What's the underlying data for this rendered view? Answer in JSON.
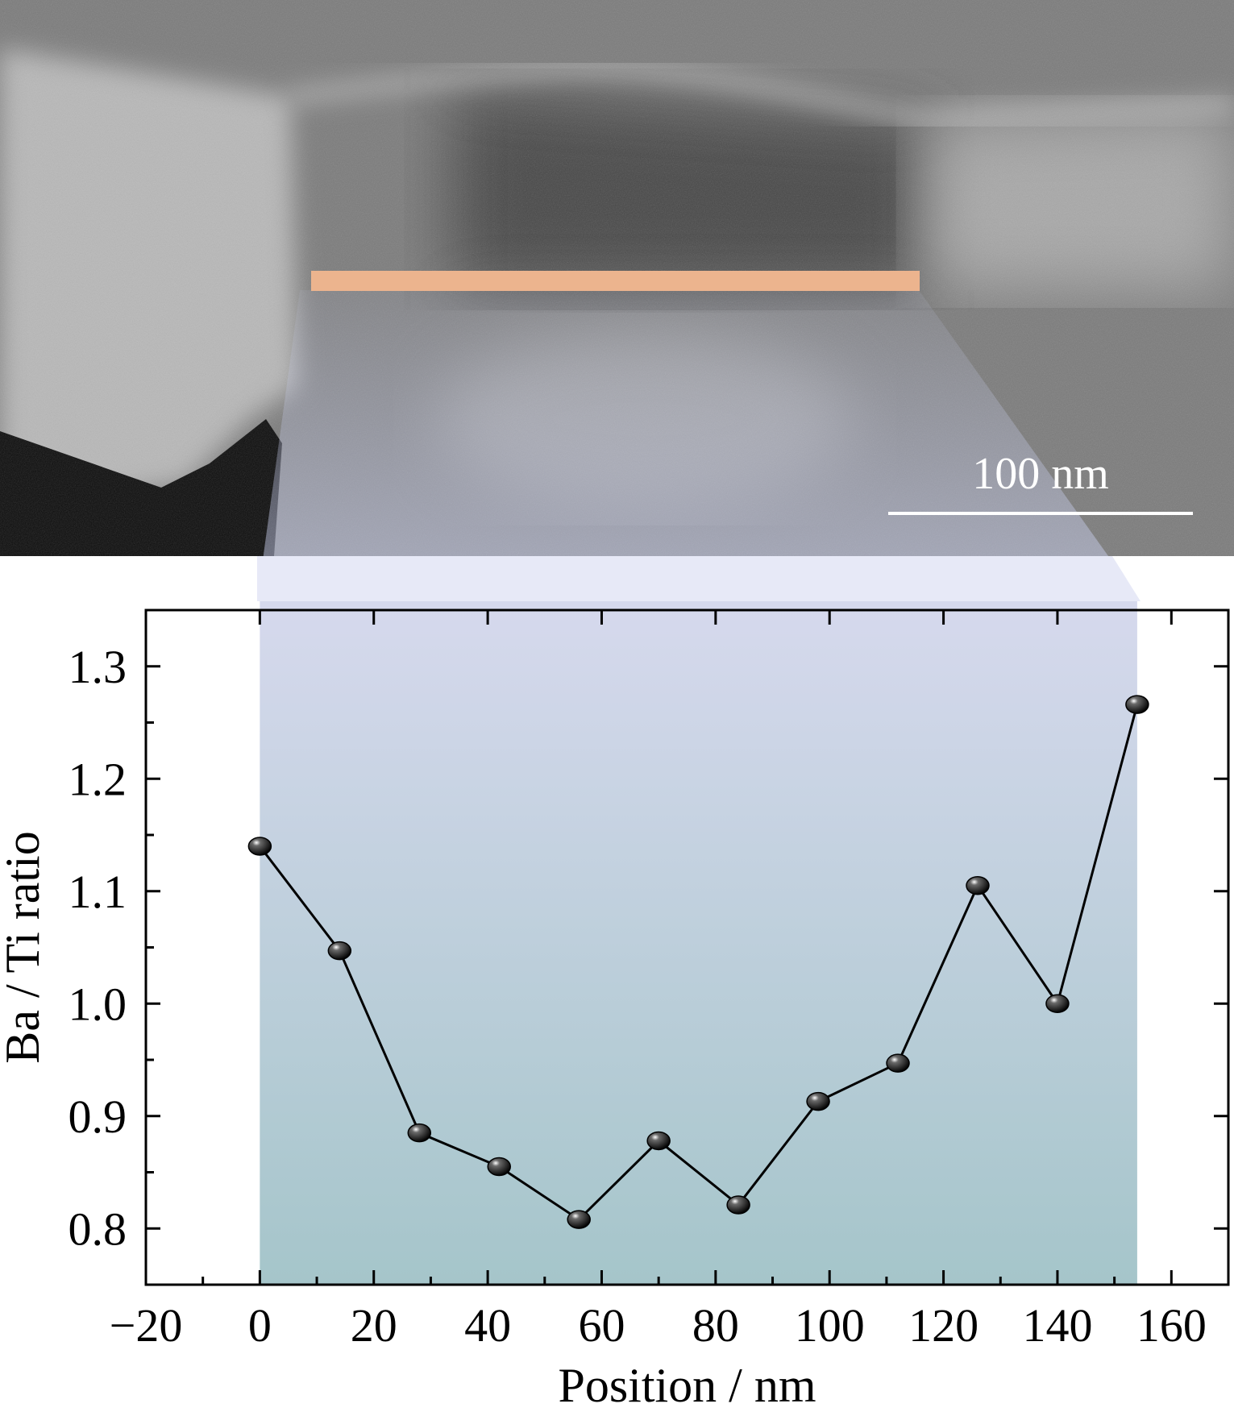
{
  "micrograph": {
    "scale_bar_label": "100 nm"
  },
  "chart_data": {
    "type": "line",
    "title": "",
    "xlabel": "Position / nm",
    "ylabel": "Ba / Ti ratio",
    "xlim": [
      -20,
      170
    ],
    "ylim": [
      0.75,
      1.35
    ],
    "x_ticks": [
      -20,
      0,
      20,
      40,
      60,
      80,
      100,
      120,
      140,
      160
    ],
    "y_ticks": [
      0.8,
      0.9,
      1.0,
      1.1,
      1.2,
      1.3
    ],
    "x_tick_labels": [
      "−20",
      "0",
      "20",
      "40",
      "60",
      "80",
      "100",
      "120",
      "140",
      "160"
    ],
    "y_tick_labels": [
      "0.8",
      "0.9",
      "1.0",
      "1.1",
      "1.2",
      "1.3"
    ],
    "grid": false,
    "series": [
      {
        "x": [
          0,
          14,
          28,
          42,
          56,
          70,
          84,
          98,
          112,
          126,
          140,
          154
        ],
        "y": [
          1.14,
          1.047,
          0.885,
          0.855,
          0.808,
          0.878,
          0.821,
          0.913,
          0.947,
          1.105,
          1.0,
          1.266
        ]
      }
    ],
    "highlight_band_x": [
      0,
      154
    ],
    "colors": {
      "line": "#000000",
      "marker": "#111111",
      "band_top": "#d8dbee",
      "band_bottom": "#a3c4c9",
      "profile_line": "#ecb48e"
    }
  }
}
